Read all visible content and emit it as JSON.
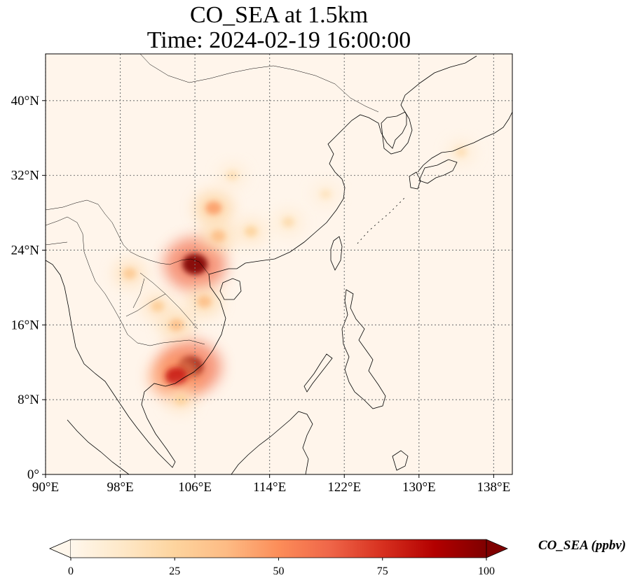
{
  "title": {
    "line1": "CO_SEA at 1.5km",
    "line2": "Time: 2024-02-19 16:00:00"
  },
  "map": {
    "projection": "PlateCarree",
    "lon_range": [
      90,
      140
    ],
    "lat_range": [
      0,
      45
    ],
    "gridlines": "dotted",
    "x_ticks": [
      {
        "lon": 90,
        "label": "90°E"
      },
      {
        "lon": 98,
        "label": "98°E"
      },
      {
        "lon": 106,
        "label": "106°E"
      },
      {
        "lon": 114,
        "label": "114°E"
      },
      {
        "lon": 122,
        "label": "122°E"
      },
      {
        "lon": 130,
        "label": "130°E"
      },
      {
        "lon": 138,
        "label": "138°E"
      }
    ],
    "y_ticks": [
      {
        "lat": 0,
        "label": "0°"
      },
      {
        "lat": 8,
        "label": "8°N"
      },
      {
        "lat": 16,
        "label": "16°N"
      },
      {
        "lat": 24,
        "label": "24°N"
      },
      {
        "lat": 32,
        "label": "32°N"
      },
      {
        "lat": 40,
        "label": "40°N"
      }
    ],
    "background_color": "#fff5eb",
    "hotspots": [
      {
        "lon": 106.0,
        "lat": 22.5,
        "value": 100
      },
      {
        "lon": 105.5,
        "lat": 11.5,
        "value": 100
      },
      {
        "lon": 104.0,
        "lat": 10.5,
        "value": 80
      },
      {
        "lon": 108.0,
        "lat": 28.5,
        "value": 45
      },
      {
        "lon": 108.5,
        "lat": 25.5,
        "value": 35
      },
      {
        "lon": 107.0,
        "lat": 18.5,
        "value": 35
      },
      {
        "lon": 99.0,
        "lat": 21.5,
        "value": 30
      },
      {
        "lon": 104.0,
        "lat": 16.0,
        "value": 35
      },
      {
        "lon": 102.0,
        "lat": 18.0,
        "value": 28
      },
      {
        "lon": 112.0,
        "lat": 26.0,
        "value": 25
      },
      {
        "lon": 116.0,
        "lat": 27.0,
        "value": 20
      },
      {
        "lon": 110.0,
        "lat": 32.0,
        "value": 18
      },
      {
        "lon": 104.5,
        "lat": 8.0,
        "value": 25
      },
      {
        "lon": 134.5,
        "lat": 34.5,
        "value": 18
      },
      {
        "lon": 120.0,
        "lat": 30.0,
        "value": 15
      }
    ]
  },
  "colorbar": {
    "colormap": "OrRd",
    "min": 0,
    "max": 100,
    "extend": "both",
    "ticks": [
      {
        "value": 0,
        "label": "0"
      },
      {
        "value": 25,
        "label": "25"
      },
      {
        "value": 50,
        "label": "50"
      },
      {
        "value": 75,
        "label": "75"
      },
      {
        "value": 100,
        "label": "100"
      }
    ],
    "label": "CO_SEA (ppbv)",
    "stops": [
      "#fff7ec",
      "#fee8c8",
      "#fdd49e",
      "#fdbb84",
      "#fc8d59",
      "#ef6548",
      "#d7301f",
      "#b30000",
      "#7f0000"
    ]
  }
}
